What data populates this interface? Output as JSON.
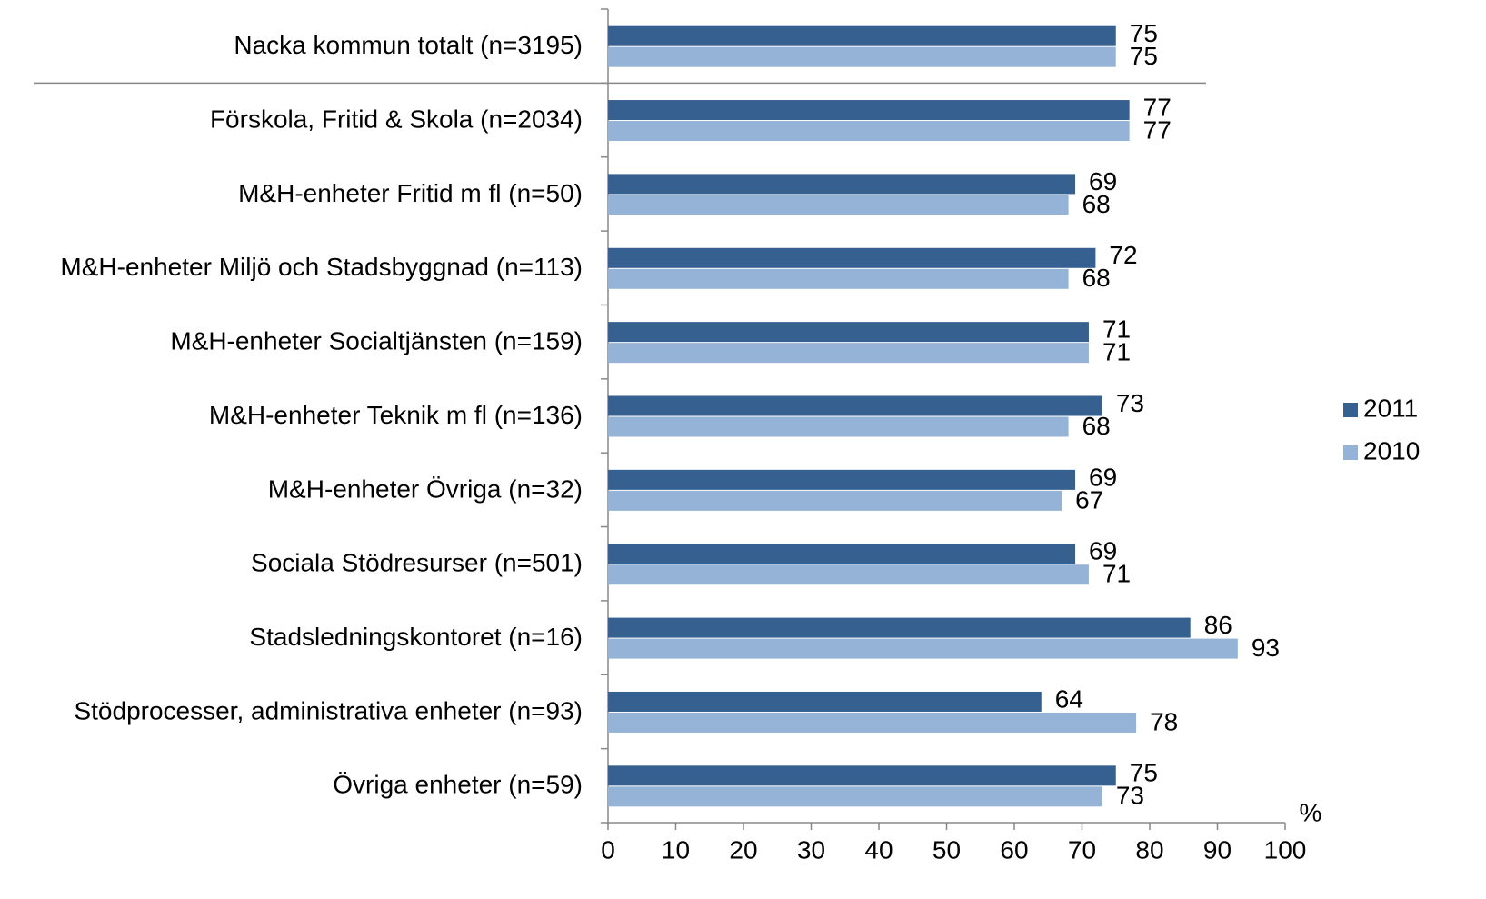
{
  "chart_data": {
    "type": "hbar",
    "categories": [
      "Nacka kommun totalt (n=3195)",
      "Förskola, Fritid & Skola (n=2034)",
      "M&H-enheter Fritid m fl (n=50)",
      "M&H-enheter Miljö och Stadsbyggnad (n=113)",
      "M&H-enheter Socialtjänsten (n=159)",
      "M&H-enheter Teknik m fl (n=136)",
      "M&H-enheter Övriga (n=32)",
      "Sociala Stödresurser (n=501)",
      "Stadsledningskontoret (n=16)",
      "Stödprocesser, administrativa enheter (n=93)",
      "Övriga enheter (n=59)"
    ],
    "series": [
      {
        "name": "2011",
        "color": "#35608f",
        "values": [
          75,
          77,
          69,
          72,
          71,
          73,
          69,
          69,
          86,
          64,
          75
        ]
      },
      {
        "name": "2010",
        "color": "#95b3d7",
        "values": [
          75,
          77,
          68,
          68,
          71,
          68,
          67,
          71,
          93,
          78,
          73
        ]
      }
    ],
    "xlabel": "%",
    "xlim": [
      0,
      100
    ],
    "xticks": [
      0,
      10,
      20,
      30,
      40,
      50,
      60,
      70,
      80,
      90,
      100
    ],
    "legend": "right"
  }
}
